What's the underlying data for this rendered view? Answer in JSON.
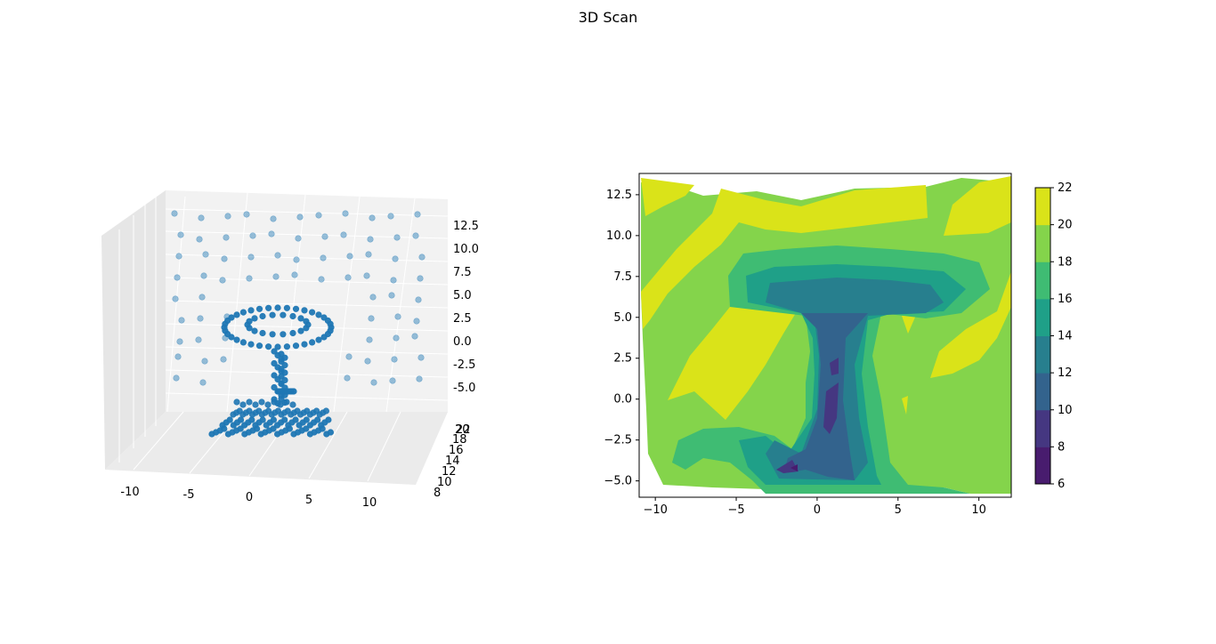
{
  "figure": {
    "title": "3D Scan"
  },
  "chart_data": [
    {
      "type": "scatter3d",
      "title": "",
      "xlabel": "",
      "ylabel": "",
      "zlabel": "",
      "x_ticks": [
        "-10",
        "-5",
        "0",
        "5",
        "10"
      ],
      "y_ticks": [
        "8",
        "10",
        "12",
        "14",
        "16",
        "18",
        "20",
        "22"
      ],
      "z_ticks": [
        "-5.0",
        "-2.5",
        "0.0",
        "2.5",
        "5.0",
        "7.5",
        "10.0",
        "12.5"
      ],
      "xlim": [
        -12,
        12
      ],
      "ylim": [
        8,
        22
      ],
      "zlim": [
        -6,
        14
      ],
      "marker_color": "#1f77b4",
      "grid": true,
      "description_of_points": "point cloud: background wall grid at y~21, table top ring at z~4, pedestal column at x~0, base at z~-5"
    },
    {
      "type": "contour_filled",
      "title": "",
      "xlabel": "",
      "ylabel": "",
      "x_ticks": [
        "−10",
        "−5",
        "0",
        "5",
        "10"
      ],
      "y_ticks": [
        "−5.0",
        "−2.5",
        "0.0",
        "2.5",
        "5.0",
        "7.5",
        "10.0",
        "12.5"
      ],
      "xlim": [
        -11,
        12
      ],
      "ylim": [
        -6,
        13.8
      ],
      "colorbar": {
        "levels": [
          6,
          8,
          10,
          12,
          14,
          16,
          18,
          20,
          22
        ],
        "tick_labels": [
          "6",
          "8",
          "10",
          "12",
          "14",
          "16",
          "18",
          "20",
          "22"
        ],
        "colors": [
          "#481c6e",
          "#453781",
          "#33638d",
          "#277f8e",
          "#1fa088",
          "#3fbc73",
          "#84d44b",
          "#dae319"
        ]
      }
    }
  ]
}
